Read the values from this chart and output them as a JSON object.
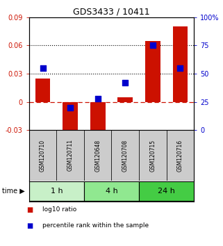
{
  "title": "GDS3433 / 10411",
  "samples": [
    "GSM120710",
    "GSM120711",
    "GSM120648",
    "GSM120708",
    "GSM120715",
    "GSM120716"
  ],
  "log10_ratio": [
    0.025,
    -0.035,
    -0.038,
    0.005,
    0.065,
    0.08
  ],
  "percentile_rank": [
    55,
    20,
    28,
    42,
    75,
    55
  ],
  "time_groups": [
    {
      "label": "1 h",
      "start": 0,
      "end": 2,
      "color": "#c8f0c8"
    },
    {
      "label": "4 h",
      "start": 2,
      "end": 4,
      "color": "#90e890"
    },
    {
      "label": "24 h",
      "start": 4,
      "end": 6,
      "color": "#44cc44"
    }
  ],
  "bar_color": "#cc1100",
  "dot_color": "#0000cc",
  "ylim_left": [
    -0.03,
    0.09
  ],
  "ylim_right": [
    0,
    100
  ],
  "yticks_left": [
    -0.03,
    0.0,
    0.03,
    0.06,
    0.09
  ],
  "yticks_right": [
    0,
    25,
    50,
    75,
    100
  ],
  "ytick_labels_left": [
    "-0.03",
    "0",
    "0.03",
    "0.06",
    "0.09"
  ],
  "ytick_labels_right": [
    "0",
    "25",
    "50",
    "75",
    "100%"
  ],
  "hlines": [
    0.06,
    0.03
  ],
  "zero_line_color": "#cc1100",
  "sample_box_color": "#cccccc",
  "bar_width": 0.55,
  "dot_size": 40,
  "legend_items": [
    "log10 ratio",
    "percentile rank within the sample"
  ]
}
